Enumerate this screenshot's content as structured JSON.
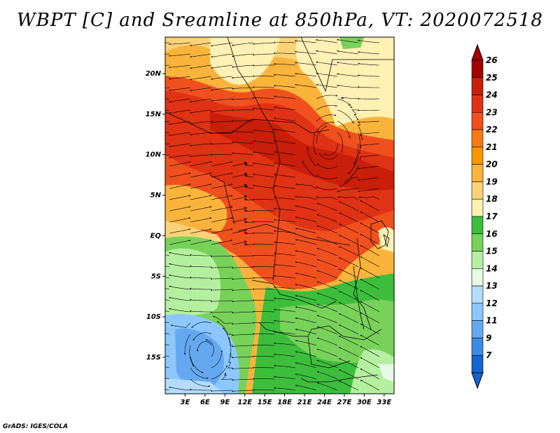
{
  "title": "WBPT [C] and Sreamline at 850hPa, VT: 2020072518",
  "footer": "GrADS: IGES/COLA",
  "map": {
    "lon_range": [
      0,
      34.5
    ],
    "lat_range": [
      -19.5,
      24.5
    ],
    "lat_ticks": [
      {
        "value": 20,
        "label": "20N"
      },
      {
        "value": 15,
        "label": "15N"
      },
      {
        "value": 10,
        "label": "10N"
      },
      {
        "value": 5,
        "label": "5N"
      },
      {
        "value": 0,
        "label": "EQ"
      },
      {
        "value": -5,
        "label": "5S"
      },
      {
        "value": -10,
        "label": "10S"
      },
      {
        "value": -15,
        "label": "15S"
      }
    ],
    "lon_ticks": [
      {
        "value": 3,
        "label": "3E"
      },
      {
        "value": 6,
        "label": "6E"
      },
      {
        "value": 9,
        "label": "9E"
      },
      {
        "value": 12,
        "label": "12E"
      },
      {
        "value": 15,
        "label": "15E"
      },
      {
        "value": 18,
        "label": "18E"
      },
      {
        "value": 21,
        "label": "21E"
      },
      {
        "value": 24,
        "label": "24E"
      },
      {
        "value": 27,
        "label": "27E"
      },
      {
        "value": 30,
        "label": "30E"
      },
      {
        "value": 33,
        "label": "33E"
      }
    ]
  },
  "colorbar": {
    "levels": [
      {
        "label": "26",
        "color": "#a50000"
      },
      {
        "label": "25",
        "color": "#c81e0a"
      },
      {
        "label": "24",
        "color": "#e03214"
      },
      {
        "label": "23",
        "color": "#f0501e"
      },
      {
        "label": "22",
        "color": "#fa7814"
      },
      {
        "label": "21",
        "color": "#fa9600"
      },
      {
        "label": "20",
        "color": "#fab43c"
      },
      {
        "label": "19",
        "color": "#fcd278"
      },
      {
        "label": "18",
        "color": "#fff0b4"
      },
      {
        "label": "17",
        "color": "#3cbe3c"
      },
      {
        "label": "16",
        "color": "#78d25a"
      },
      {
        "label": "15",
        "color": "#b4f0a0"
      },
      {
        "label": "14",
        "color": "#e6fae6"
      },
      {
        "label": "13",
        "color": "#b4dcff"
      },
      {
        "label": "12",
        "color": "#8cc8ff"
      },
      {
        "label": "11",
        "color": "#64a8f0"
      },
      {
        "label": "9",
        "color": "#3c8ce6"
      },
      {
        "label": "7",
        "color": "#1464d2"
      }
    ],
    "top_arrow_color": "#a50000",
    "bottom_arrow_color": "#1464d2"
  }
}
